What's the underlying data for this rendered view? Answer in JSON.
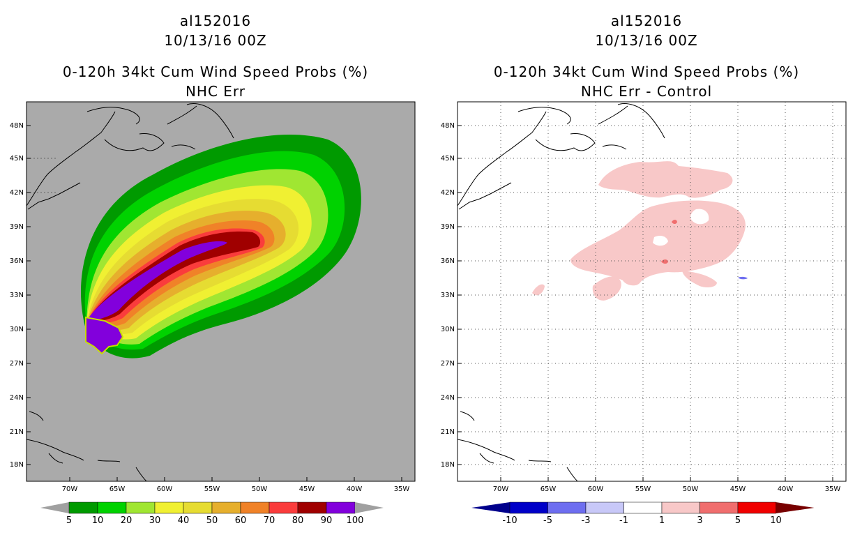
{
  "left_panel": {
    "storm_id": "al152016",
    "datetime": "10/13/16 00Z",
    "title": "0-120h 34kt Cum Wind Speed Probs (%)",
    "subtitle": "NHC Err",
    "lat_labels": [
      "48N",
      "45N",
      "42N",
      "39N",
      "36N",
      "33N",
      "30N",
      "27N",
      "24N",
      "21N",
      "18N"
    ],
    "lon_labels": [
      "70W",
      "65W",
      "60W",
      "55W",
      "50W",
      "45W",
      "40W",
      "35W"
    ],
    "colorbar": {
      "labels": [
        "5",
        "10",
        "20",
        "30",
        "40",
        "50",
        "60",
        "70",
        "80",
        "90",
        "100"
      ],
      "colors": [
        "#009a00",
        "#00d200",
        "#a0e632",
        "#f0f032",
        "#e6dc32",
        "#e6af2d",
        "#f08228",
        "#fa3c3c",
        "#a00000",
        "#8200dc"
      ],
      "arrow_color": "#a0a0a0"
    }
  },
  "right_panel": {
    "storm_id": "al152016",
    "datetime": "10/13/16 00Z",
    "title": "0-120h 34kt Cum Wind Speed Probs (%)",
    "subtitle": "NHC Err - Control",
    "lat_labels": [
      "48N",
      "45N",
      "42N",
      "39N",
      "36N",
      "33N",
      "30N",
      "27N",
      "24N",
      "21N",
      "18N"
    ],
    "lon_labels": [
      "70W",
      "65W",
      "60W",
      "55W",
      "50W",
      "45W",
      "40W",
      "35W"
    ],
    "colorbar": {
      "labels": [
        "-10",
        "-5",
        "-3",
        "-1",
        "1",
        "3",
        "5",
        "10"
      ],
      "colors": [
        "#0000c8",
        "#6e6ef0",
        "#c8c8f8",
        "#ffffff",
        "#f8c8c8",
        "#f06e6e",
        "#f00000"
      ],
      "arrow_low_color": "#00008c",
      "arrow_high_color": "#780000"
    }
  }
}
